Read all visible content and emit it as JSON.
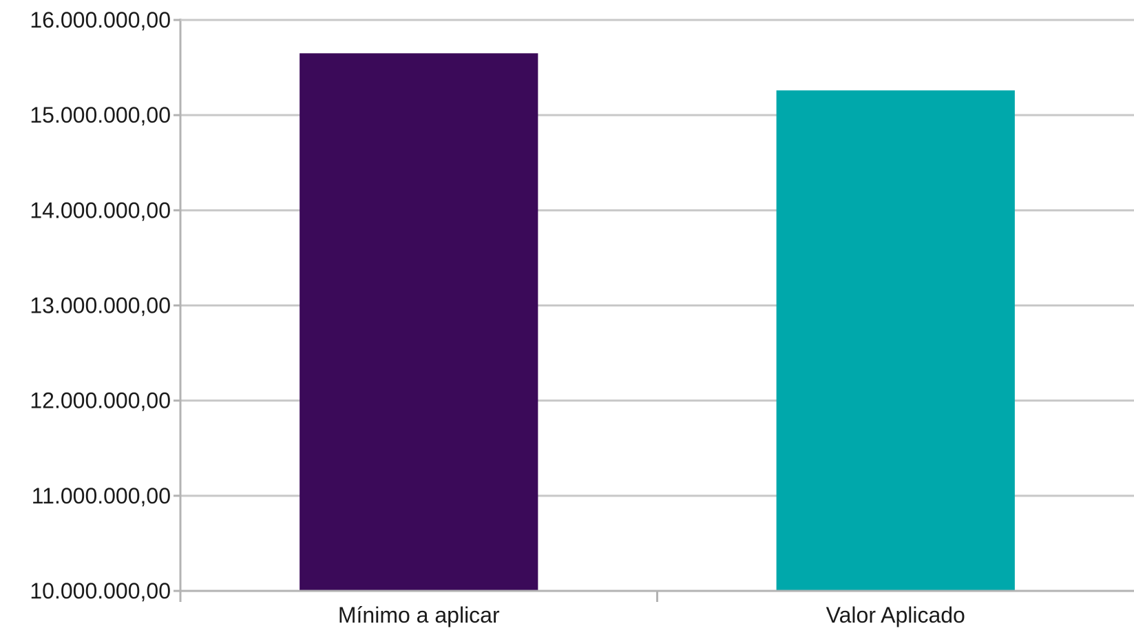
{
  "chart_data": {
    "type": "bar",
    "title": "",
    "xlabel": "",
    "ylabel": "",
    "categories": [
      "Mínimo a aplicar",
      "Valor Aplicado"
    ],
    "values": [
      15650000,
      15260000
    ],
    "colors": [
      "#3b0a59",
      "#00a8ab"
    ],
    "ylim": [
      10000000,
      16000000
    ],
    "yticks": [
      10000000,
      11000000,
      12000000,
      13000000,
      14000000,
      15000000,
      16000000
    ],
    "ytick_labels": [
      "10.000.000,00",
      "11.000.000,00",
      "12.000.000,00",
      "13.000.000,00",
      "14.000.000,00",
      "15.000.000,00",
      "16.000.000,00"
    ],
    "grid": true,
    "legend": "none"
  }
}
